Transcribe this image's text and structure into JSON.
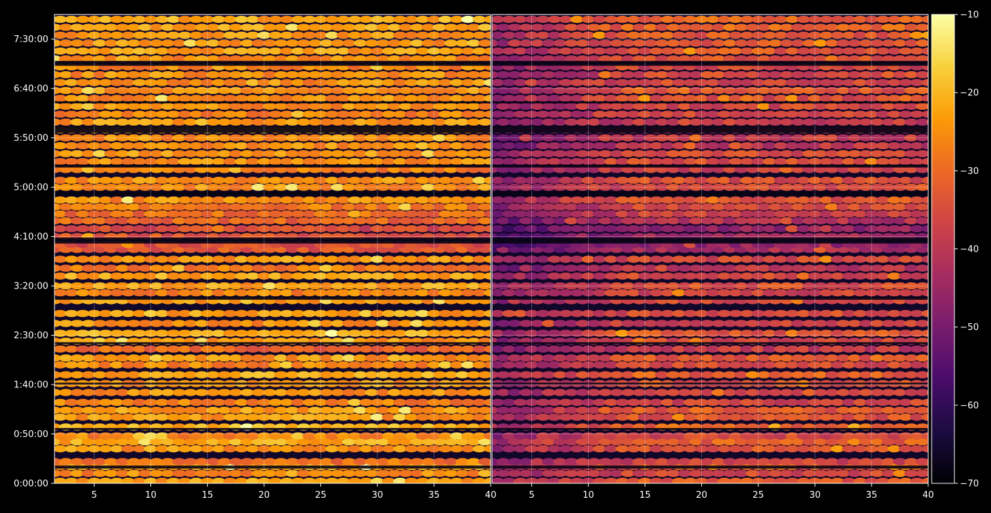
{
  "chart_data": {
    "type": "heatmap",
    "title": "",
    "background": "#000000",
    "colormap": "inferno",
    "colormap_stops": [
      "#000004",
      "#1b0c41",
      "#4a0c6b",
      "#781c6d",
      "#a52c60",
      "#cf4446",
      "#ed6925",
      "#fb9b06",
      "#f7d13d",
      "#fcffa4"
    ],
    "grid": true,
    "panels": [
      {
        "name": "left",
        "xlim": [
          1.5,
          40
        ],
        "x_ticks": [
          "5",
          "10",
          "15",
          "20",
          "25",
          "30",
          "35",
          "40"
        ]
      },
      {
        "name": "right",
        "xlim": [
          1.5,
          40
        ],
        "x_ticks": [
          "5",
          "10",
          "15",
          "20",
          "25",
          "30",
          "35",
          "40"
        ]
      }
    ],
    "y_axis": {
      "unit": "h:mm:ss",
      "ylim_minutes": [
        0,
        475
      ],
      "ticks": [
        "0:00:00",
        "0:50:00",
        "1:40:00",
        "2:30:00",
        "3:20:00",
        "4:10:00",
        "5:00:00",
        "5:50:00",
        "6:40:00",
        "7:30:00"
      ]
    },
    "colorbar": {
      "range": [
        -70,
        -10
      ],
      "ticks": [
        "-10",
        "-20",
        "-30",
        "-40",
        "-50",
        "-60",
        "-70"
      ]
    },
    "rows_minutes": [
      2,
      10,
      17,
      22,
      35,
      42,
      48,
      57,
      67,
      74,
      82,
      92,
      101,
      110,
      120,
      127,
      136,
      144,
      152,
      162,
      172,
      185,
      193,
      200,
      210,
      218,
      227,
      237,
      242,
      250,
      258,
      266,
      273,
      280,
      287,
      300,
      307,
      318,
      326,
      334,
      342,
      350,
      358,
      366,
      374,
      382,
      390,
      398,
      406,
      414,
      422,
      430,
      438,
      446,
      454,
      462,
      470
    ],
    "row_means_left": [
      -23,
      -26,
      -22,
      -29,
      -24,
      -22,
      -26,
      -21,
      -24,
      -23,
      -27,
      -25,
      -24,
      -22,
      -26,
      -24,
      -31,
      -24,
      -22,
      -25,
      -23,
      -24,
      -26,
      -23,
      -22,
      -28,
      -24,
      -33,
      -35,
      -34,
      -36,
      -31,
      -30,
      -28,
      -25,
      -25,
      -25,
      -27,
      -25,
      -24,
      -25,
      -25,
      -23,
      -24,
      -27,
      -25,
      -25,
      -24,
      -25,
      -25,
      -26,
      -25,
      -23,
      -24,
      -24,
      -22,
      -22
    ],
    "row_means_right": [
      -33,
      -36,
      -32,
      -37,
      -34,
      -32,
      -36,
      -31,
      -34,
      -33,
      -37,
      -35,
      -34,
      -32,
      -36,
      -34,
      -39,
      -36,
      -34,
      -37,
      -35,
      -36,
      -37,
      -35,
      -36,
      -40,
      -36,
      -43,
      -46,
      -45,
      -46,
      -42,
      -38,
      -36,
      -34,
      -35,
      -35,
      -37,
      -35,
      -36,
      -40,
      -39,
      -38,
      -38,
      -37,
      -36,
      -35,
      -34,
      -36,
      -36,
      -37,
      -35,
      -33,
      -33,
      -33,
      -31,
      -31
    ],
    "dark_bands_minutes": [
      [
        15,
        18
      ],
      [
        54,
        56
      ],
      [
        100,
        102
      ],
      [
        141,
        143
      ],
      [
        186,
        189
      ],
      [
        243,
        249
      ],
      [
        291,
        296
      ],
      [
        320,
        323
      ],
      [
        355,
        362
      ],
      [
        385,
        387
      ],
      [
        423,
        428
      ]
    ]
  }
}
